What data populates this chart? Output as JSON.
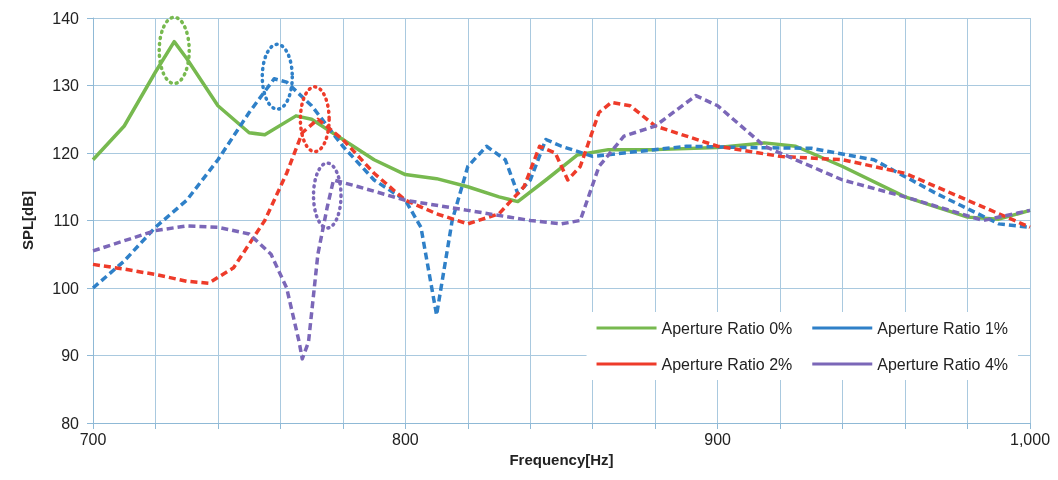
{
  "chart_data": {
    "type": "line",
    "xlabel": "Frequency[Hz]",
    "ylabel": "SPL[dB]",
    "xlim": [
      700,
      1000
    ],
    "xticks": [
      700,
      {
        "value": 720,
        "label": null
      },
      {
        "value": 740,
        "label": null
      },
      {
        "value": 760,
        "label": null
      },
      {
        "value": 780,
        "label": null
      },
      800,
      {
        "value": 820,
        "label": null
      },
      {
        "value": 840,
        "label": null
      },
      {
        "value": 860,
        "label": null
      },
      {
        "value": 880,
        "label": null
      },
      900,
      {
        "value": 920,
        "label": null
      },
      {
        "value": 940,
        "label": null
      },
      {
        "value": 960,
        "label": null
      },
      {
        "value": 980,
        "label": null
      },
      {
        "value": 1000,
        "label": "1,000"
      }
    ],
    "ylim": [
      80,
      140
    ],
    "yticks": [
      80,
      90,
      100,
      110,
      120,
      130,
      140
    ],
    "grid": true,
    "legend": "bottom right",
    "marker": "none",
    "series": [
      {
        "name": "Aperture Ratio 0%",
        "color": "#77b94f",
        "line_style": "solid",
        "x": [
          700,
          710,
          720,
          726,
          730,
          740,
          750,
          755,
          765,
          770,
          780,
          790,
          800,
          810,
          820,
          830,
          836,
          845,
          855,
          865,
          880,
          900,
          915,
          925,
          940,
          960,
          980,
          990,
          1000
        ],
        "values": [
          119,
          124,
          132,
          136.5,
          134,
          127,
          123,
          122.7,
          125.5,
          125,
          122,
          119,
          116.8,
          116.2,
          115,
          113.5,
          112.8,
          116,
          119.7,
          120.5,
          120.5,
          120.8,
          121.5,
          121,
          118,
          113.5,
          110.5,
          110.2,
          111.5
        ]
      },
      {
        "name": "Aperture Ratio 1%",
        "color": "#2f80c8",
        "line_style": "dashed",
        "x": [
          700,
          710,
          720,
          730,
          740,
          750,
          758,
          762,
          770,
          780,
          790,
          800,
          805,
          810,
          815,
          820,
          826,
          832,
          836,
          840,
          845,
          850,
          860,
          870,
          890,
          910,
          930,
          950,
          970,
          990,
          1000
        ],
        "values": [
          100,
          104,
          109,
          113,
          119,
          126,
          131,
          130.5,
          127,
          121,
          116,
          113,
          109,
          96,
          110,
          118,
          121,
          119,
          114,
          116,
          122,
          121,
          119.5,
          120,
          121,
          120.8,
          120.7,
          119,
          114,
          109.5,
          109
        ]
      },
      {
        "name": "Aperture Ratio 2%",
        "color": "#ee3b2a",
        "line_style": "dashed",
        "x": [
          700,
          710,
          720,
          730,
          737,
          745,
          755,
          762,
          767,
          772,
          780,
          790,
          800,
          810,
          820,
          830,
          838,
          843,
          848,
          852,
          856,
          862,
          866,
          872,
          880,
          900,
          920,
          940,
          960,
          980,
          990,
          1000
        ],
        "values": [
          103.5,
          102.8,
          102,
          101,
          100.7,
          103,
          110,
          117,
          123,
          125,
          122,
          117,
          113,
          111,
          109.5,
          111,
          115,
          121,
          120,
          116,
          118,
          126,
          127.5,
          127,
          124,
          121,
          119.5,
          119,
          117,
          113,
          111,
          109
        ]
      },
      {
        "name": "Aperture Ratio 4%",
        "color": "#7b67b8",
        "line_style": "dashed",
        "x": [
          700,
          710,
          720,
          730,
          740,
          750,
          757,
          762,
          766,
          767,
          769,
          772,
          775,
          777,
          785,
          800,
          820,
          840,
          850,
          856,
          862,
          870,
          880,
          893,
          900,
          915,
          940,
          960,
          985,
          1000
        ],
        "values": [
          105.5,
          107,
          108.5,
          109.2,
          109,
          108,
          105,
          100,
          92,
          89.5,
          92,
          105,
          112,
          116,
          115,
          113,
          111.5,
          110,
          109.5,
          110,
          118,
          122.5,
          124,
          128.5,
          127,
          121,
          116,
          113.5,
          110,
          111.5
        ]
      }
    ]
  }
}
